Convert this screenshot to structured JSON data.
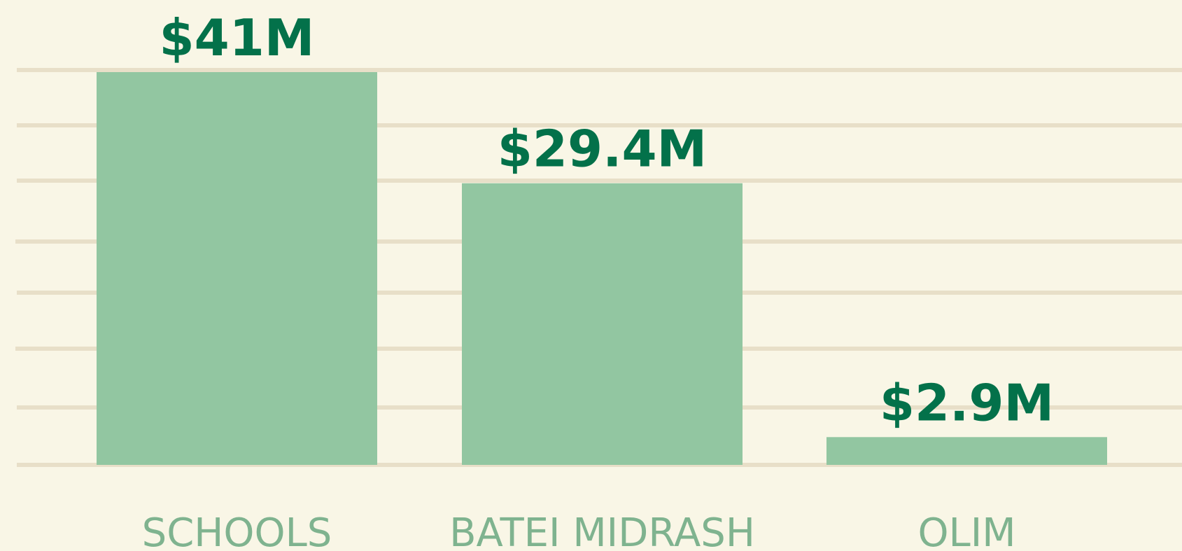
{
  "chart_data": {
    "type": "bar",
    "categories": [
      "SCHOOLS",
      "BATEI MIDRASH",
      "OLIM"
    ],
    "values": [
      41,
      29.4,
      2.9
    ],
    "value_labels": [
      "$41M",
      "$29.4M",
      "$2.9M"
    ],
    "color": "#92c6a1",
    "ylim": [
      0,
      41
    ]
  }
}
